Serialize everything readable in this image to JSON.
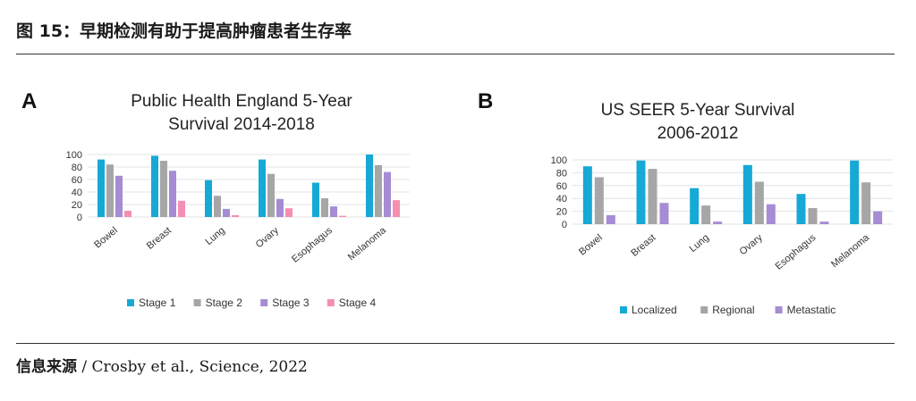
{
  "header": {
    "figure_title": "图 15：早期检测有助于提高肿瘤患者生存率"
  },
  "source": {
    "label": "信息来源",
    "text": " / Crosby et al., Science, 2022"
  },
  "chart_data": [
    {
      "panel": "A",
      "type": "bar",
      "title_lines": [
        "Public Health England 5-Year",
        "Survival 2014-2018"
      ],
      "categories": [
        "Bowel",
        "Breast",
        "Lung",
        "Ovary",
        "Esophagus",
        "Melanoma"
      ],
      "series": [
        {
          "name": "Stage 1",
          "color": "#16a9d6",
          "values": [
            92,
            98,
            59,
            92,
            55,
            100
          ]
        },
        {
          "name": "Stage 2",
          "color": "#a6a6a6",
          "values": [
            84,
            90,
            34,
            69,
            30,
            83
          ]
        },
        {
          "name": "Stage 3",
          "color": "#a68cd4",
          "values": [
            66,
            74,
            13,
            29,
            17,
            72
          ]
        },
        {
          "name": "Stage 4",
          "color": "#f48fb1",
          "values": [
            10,
            26,
            3,
            14,
            2,
            27
          ]
        }
      ],
      "yticks": [
        0,
        20,
        40,
        60,
        80,
        100
      ],
      "ylim": [
        0,
        100
      ],
      "legend_position": "bottom"
    },
    {
      "panel": "B",
      "type": "bar",
      "title_lines": [
        "US SEER 5-Year Survival",
        "2006-2012"
      ],
      "categories": [
        "Bowel",
        "Breast",
        "Lung",
        "Ovary",
        "Esophagus",
        "Melanoma"
      ],
      "series": [
        {
          "name": "Localized",
          "color": "#16a9d6",
          "values": [
            90,
            99,
            56,
            92,
            47,
            99
          ]
        },
        {
          "name": "Regional",
          "color": "#a6a6a6",
          "values": [
            73,
            86,
            29,
            66,
            25,
            65
          ]
        },
        {
          "name": "Metastatic",
          "color": "#a68cd4",
          "values": [
            14,
            33,
            4,
            31,
            4,
            20
          ]
        }
      ],
      "yticks": [
        0,
        20,
        40,
        60,
        80,
        100
      ],
      "ylim": [
        0,
        100
      ],
      "legend_position": "bottom"
    }
  ]
}
